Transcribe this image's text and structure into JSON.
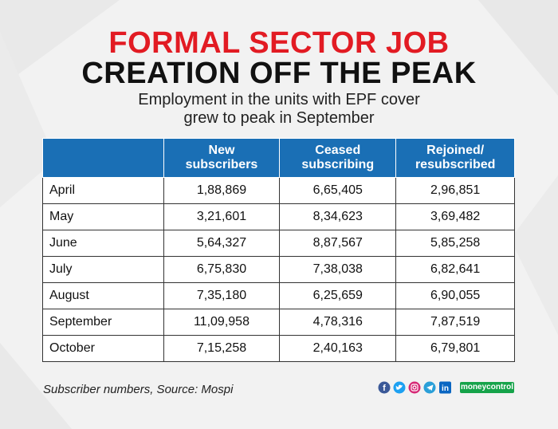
{
  "header": {
    "title_line1": "FORMAL SECTOR JOB",
    "title_line2": "CREATION OFF THE PEAK",
    "subtitle_line1": "Employment in the units with EPF cover",
    "subtitle_line2": "grew to peak in September"
  },
  "colors": {
    "title_red": "#e21b23",
    "header_blue": "#1a6fb5",
    "brand_green": "#16a34a"
  },
  "chart_data": {
    "type": "table",
    "title": "FORMAL SECTOR JOB CREATION OFF THE PEAK",
    "subtitle": "Employment in the units with EPF cover grew to peak in September",
    "columns": [
      "",
      "New subscribers",
      "Ceased subscribing",
      "Rejoined/ resubscribed"
    ],
    "header_lines": [
      [
        "New",
        "subscribers"
      ],
      [
        "Ceased",
        "subscribing"
      ],
      [
        "Rejoined/",
        "resubscribed"
      ]
    ],
    "rows": [
      {
        "month": "April",
        "new": "1,88,869",
        "ceased": "6,65,405",
        "rejoined": "2,96,851"
      },
      {
        "month": "May",
        "new": "3,21,601",
        "ceased": "8,34,623",
        "rejoined": "3,69,482"
      },
      {
        "month": "June",
        "new": "5,64,327",
        "ceased": "8,87,567",
        "rejoined": "5,85,258"
      },
      {
        "month": "July",
        "new": "6,75,830",
        "ceased": "7,38,038",
        "rejoined": "6,82,641"
      },
      {
        "month": "August",
        "new": "7,35,180",
        "ceased": "6,25,659",
        "rejoined": "6,90,055"
      },
      {
        "month": "September",
        "new": "11,09,958",
        "ceased": "4,78,316",
        "rejoined": "7,87,519"
      },
      {
        "month": "October",
        "new": "7,15,258",
        "ceased": "2,40,163",
        "rejoined": "6,79,801"
      }
    ]
  },
  "footer": {
    "note": "Subscriber numbers, Source: Mospi",
    "brand": "moneycontrol",
    "social_icons": [
      "facebook-icon",
      "twitter-icon",
      "instagram-icon",
      "telegram-icon",
      "linkedin-icon"
    ]
  }
}
